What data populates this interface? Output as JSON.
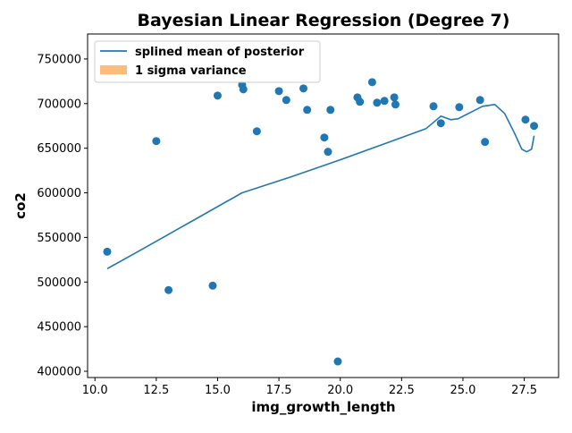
{
  "chart_data": {
    "type": "scatter",
    "title": "Bayesian Linear Regression (Degree 7)",
    "xlabel": "img_growth_length",
    "ylabel": "co2",
    "xlim": [
      9.7,
      28.9
    ],
    "ylim": [
      393000,
      778000
    ],
    "x_ticks": [
      10.0,
      12.5,
      15.0,
      17.5,
      20.0,
      22.5,
      25.0,
      27.5
    ],
    "x_tick_labels": [
      "10.0",
      "12.5",
      "15.0",
      "17.5",
      "20.0",
      "22.5",
      "25.0",
      "27.5"
    ],
    "y_ticks": [
      400000,
      450000,
      500000,
      550000,
      600000,
      650000,
      700000,
      750000
    ],
    "y_tick_labels": [
      "400000",
      "450000",
      "500000",
      "550000",
      "600000",
      "650000",
      "700000",
      "750000"
    ],
    "grid": false,
    "legend_position": "top-left",
    "legend": [
      {
        "label": "splined mean of posterior",
        "kind": "line",
        "color": "#1f77b4"
      },
      {
        "label": "1 sigma variance",
        "kind": "patch",
        "color": "#ffbb78"
      }
    ],
    "scatter_points": {
      "color": "#1f77b4",
      "x": [
        10.5,
        12.5,
        13.0,
        14.8,
        15.0,
        16.0,
        16.05,
        16.6,
        17.5,
        17.8,
        18.5,
        18.65,
        19.35,
        19.5,
        19.6,
        19.9,
        20.7,
        20.8,
        21.3,
        21.5,
        21.8,
        22.2,
        22.25,
        23.8,
        24.1,
        24.85,
        25.7,
        25.9,
        27.55,
        27.9
      ],
      "y": [
        534000,
        658000,
        491000,
        496000,
        709000,
        721000,
        716000,
        669000,
        714000,
        704000,
        717000,
        693000,
        662000,
        646000,
        693000,
        411000,
        707000,
        702000,
        724000,
        701000,
        703000,
        707000,
        699000,
        697000,
        678000,
        696000,
        704000,
        657000,
        682000,
        675000
      ]
    },
    "series": [
      {
        "name": "splined mean of posterior",
        "kind": "line",
        "color": "#1f77b4",
        "x": [
          10.5,
          12.0,
          14.0,
          16.0,
          18.0,
          20.0,
          22.0,
          23.5,
          24.1,
          24.5,
          24.8,
          25.3,
          25.8,
          26.3,
          26.7,
          27.1,
          27.4,
          27.6,
          27.8,
          27.9
        ],
        "y": [
          515000,
          538000,
          569000,
          600000,
          618000,
          637000,
          657000,
          672000,
          686000,
          682000,
          683000,
          690000,
          697000,
          699000,
          689000,
          667000,
          649000,
          646000,
          649000,
          664000
        ]
      }
    ]
  }
}
